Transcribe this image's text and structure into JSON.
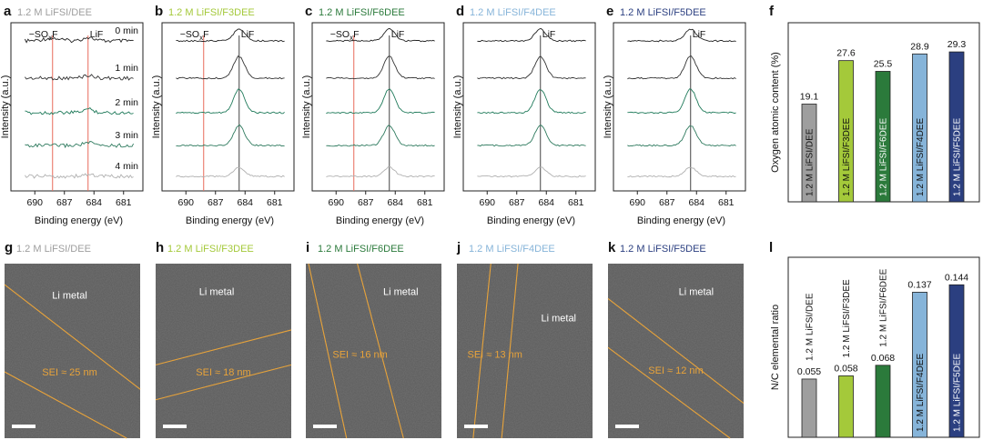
{
  "colors": {
    "DEE": "#9e9e9e",
    "F3DEE": "#a4c93a",
    "F6DEE": "#2b7a3b",
    "F4DEE": "#86b4d9",
    "F5DEE": "#2b3f80",
    "reference_line": "#e86a5c",
    "sei_boundary": "#e8a33a"
  },
  "xps": {
    "xlabel": "Binding energy (eV)",
    "ylabel": "Intensity (a.u.)",
    "xticks": [
      "690",
      "687",
      "684",
      "681"
    ],
    "times": [
      "0 min",
      "1 min",
      "2 min",
      "3 min",
      "4 min"
    ],
    "trace_colors": [
      "#222222",
      "#333333",
      "#1f7a5a",
      "#2e7a5e",
      "#b0b0b0"
    ],
    "ann_sox": "−SO",
    "ann_sox_sub": "x",
    "ann_sox_f": "F",
    "ann_lif": "LiF",
    "panels": [
      {
        "letter": "a",
        "title": "1.2 M LiFSI/DEE",
        "color_key": "DEE",
        "show_sox": true,
        "show_times": true
      },
      {
        "letter": "b",
        "title": "1.2 M LiFSI/F3DEE",
        "color_key": "F3DEE",
        "show_sox": true,
        "show_times": false
      },
      {
        "letter": "c",
        "title": "1.2 M LiFSI/F6DEE",
        "color_key": "F6DEE",
        "show_sox": true,
        "show_times": false
      },
      {
        "letter": "d",
        "title": "1.2 M LiFSI/F4DEE",
        "color_key": "F4DEE",
        "show_sox": false,
        "show_times": false
      },
      {
        "letter": "e",
        "title": "1.2 M LiFSI/F5DEE",
        "color_key": "F5DEE",
        "show_sox": false,
        "show_times": false
      }
    ]
  },
  "sem": {
    "metal_label": "Li metal",
    "panels": [
      {
        "letter": "g",
        "title": "1.2 M LiFSI/DEE",
        "color_key": "DEE",
        "sei_label": "SEI ≈ 25 nm"
      },
      {
        "letter": "h",
        "title": "1.2 M LiFSI/F3DEE",
        "color_key": "F3DEE",
        "sei_label": "SEI ≈ 18 nm"
      },
      {
        "letter": "i",
        "title": "1.2 M LiFSI/F6DEE",
        "color_key": "F6DEE",
        "sei_label": "SEI ≈ 16 nm"
      },
      {
        "letter": "j",
        "title": "1.2 M LiFSI/F4DEE",
        "color_key": "F4DEE",
        "sei_label": "SEI ≈ 13 nm"
      },
      {
        "letter": "k",
        "title": "1.2 M LiFSI/F5DEE",
        "color_key": "F5DEE",
        "sei_label": "SEI ≈ 12 nm"
      }
    ]
  },
  "chart_data": [
    {
      "panel": "f",
      "type": "bar",
      "ylabel": "Oxygen atomic content (%)",
      "categories": [
        "1.2 M LiFSI/DEE",
        "1.2 M LiFSI/F3DEE",
        "1.2 M LiFSI/F6DEE",
        "1.2 M LiFSI/F4DEE",
        "1.2 M LiFSI/F5DEE"
      ],
      "values": [
        19.1,
        27.6,
        25.5,
        28.9,
        29.3
      ],
      "value_labels": [
        "19.1",
        "27.6",
        "25.5",
        "28.9",
        "29.3"
      ],
      "ylim": [
        0,
        35
      ],
      "grid": false
    },
    {
      "panel": "l",
      "type": "bar",
      "ylabel": "N/C elemental ratio",
      "categories": [
        "1.2 M LiFSI/DEE",
        "1.2 M LiFSI/F3DEE",
        "1.2 M LiFSI/F6DEE",
        "1.2 M LiFSI/F4DEE",
        "1.2 M LiFSI/F5DEE"
      ],
      "values": [
        0.055,
        0.058,
        0.068,
        0.137,
        0.144
      ],
      "value_labels": [
        "0.055",
        "0.058",
        "0.068",
        "0.137",
        "0.144"
      ],
      "ylim": [
        0,
        0.17
      ],
      "grid": false
    }
  ]
}
